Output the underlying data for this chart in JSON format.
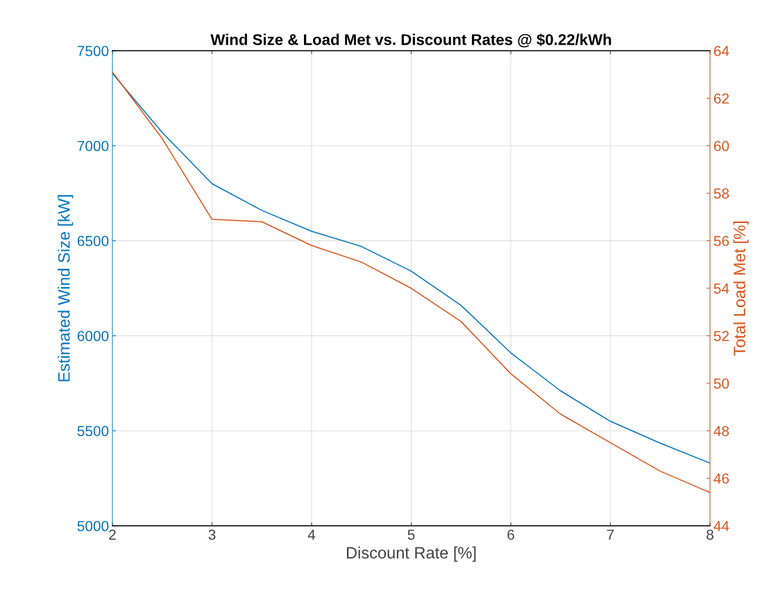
{
  "chart_data": {
    "type": "line",
    "title": "Wind Size & Load Met vs. Discount Rates @ $0.22/kWh",
    "xlabel": "Discount Rate [%]",
    "ylabel": "Estimated Wind Size [kW]",
    "y2label": "Total Load Met [%]",
    "x": [
      2,
      2.5,
      3,
      3.5,
      4,
      4.5,
      5,
      5.5,
      6,
      6.5,
      7,
      7.5,
      8
    ],
    "series": [
      {
        "color": "#0072bd",
        "values": [
          7380,
          7070,
          6800,
          6660,
          6550,
          6470,
          6340,
          6160,
          5910,
          5710,
          5550,
          5435,
          5330
        ]
      },
      {
        "color": "#d95319",
        "axis": "y2",
        "values": [
          63.1,
          60.3,
          56.9,
          56.8,
          55.8,
          55.1,
          54.0,
          52.6,
          50.4,
          48.7,
          47.5,
          46.3,
          45.4
        ]
      }
    ],
    "xlim": [
      2,
      8
    ],
    "xticks": [
      2,
      3,
      4,
      5,
      6,
      7,
      8
    ],
    "ylim": [
      5000,
      7500
    ],
    "yticks": [
      5000,
      5500,
      6000,
      6500,
      7000,
      7500
    ],
    "y2lim": [
      44,
      64
    ],
    "y2ticks": [
      44,
      46,
      48,
      50,
      52,
      54,
      56,
      58,
      60,
      62,
      64
    ],
    "grid": true
  }
}
